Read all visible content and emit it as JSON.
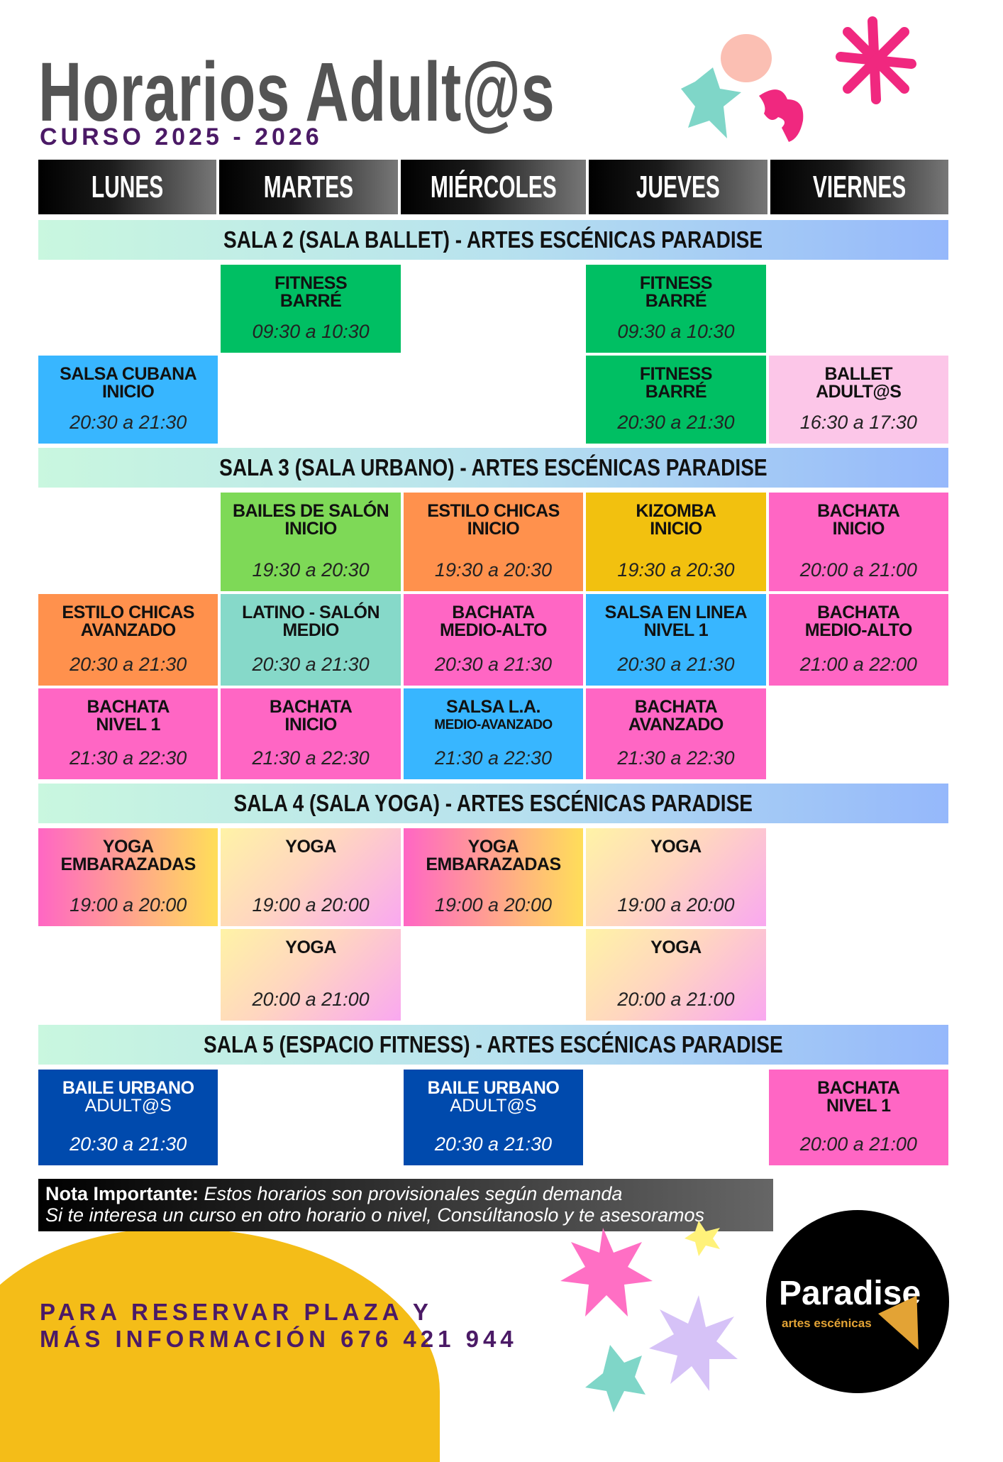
{
  "header": {
    "title": "Horarios Adult@s",
    "subtitle": "CURSO 2025 - 2026"
  },
  "days": [
    "LUNES",
    "MARTES",
    "MIÉRCOLES",
    "JUEVES",
    "VIERNES"
  ],
  "rooms": [
    {
      "title": "SALA 2 (SALA BALLET) - ARTES ESCÉNICAS PARADISE",
      "rows": [
        [
          null,
          {
            "name": "FITNESS",
            "sub2": "BARRÉ",
            "time": "09:30 a 10:30",
            "style": "green"
          },
          null,
          {
            "name": "FITNESS",
            "sub2": "BARRÉ",
            "time": "09:30 a 10:30",
            "style": "green"
          },
          null
        ],
        [
          {
            "name": "SALSA CUBANA",
            "sub2": "INICIO",
            "time": "20:30 a 21:30",
            "style": "blue"
          },
          null,
          null,
          {
            "name": "FITNESS",
            "sub2": "BARRÉ",
            "time": "20:30 a 21:30",
            "style": "green"
          },
          {
            "name": "BALLET",
            "sub2": "ADULT@S",
            "time": "16:30 a 17:30",
            "style": "lightpink"
          }
        ]
      ]
    },
    {
      "title": "SALA 3 (SALA URBANO) - ARTES ESCÉNICAS PARADISE",
      "rows": [
        [
          null,
          {
            "name": "BAILES DE SALÓN",
            "sub2": "INICIO",
            "time": "19:30 a 20:30",
            "style": "lime"
          },
          {
            "name": "ESTILO CHICAS",
            "sub2": "INICIO",
            "time": "19:30 a 20:30",
            "style": "orange"
          },
          {
            "name": "KIZOMBA",
            "sub2": "INICIO",
            "time": "19:30 a 20:30",
            "style": "yellow"
          },
          {
            "name": "BACHATA",
            "sub2": "INICIO",
            "time": "20:00 a 21:00",
            "style": "pink"
          }
        ],
        [
          {
            "name": "ESTILO CHICAS",
            "sub2": "AVANZADO",
            "time": "20:30 a 21:30",
            "style": "orange"
          },
          {
            "name": "LATINO - SALÓN",
            "sub2": "MEDIO",
            "time": "20:30 a 21:30",
            "style": "teal"
          },
          {
            "name": "BACHATA",
            "sub2": "MEDIO-ALTO",
            "time": "20:30 a 21:30",
            "style": "pink"
          },
          {
            "name": "SALSA EN LINEA",
            "sub2": "NIVEL 1",
            "time": "20:30 a 21:30",
            "style": "blue"
          },
          {
            "name": "BACHATA",
            "sub2": "MEDIO-ALTO",
            "time": "21:00 a 22:00",
            "style": "pink"
          }
        ],
        [
          {
            "name": "BACHATA",
            "sub2": "NIVEL 1",
            "time": "21:30 a 22:30",
            "style": "pink"
          },
          {
            "name": "BACHATA",
            "sub2": "INICIO",
            "time": "21:30 a 22:30",
            "style": "pink"
          },
          {
            "name": "SALSA L.A.",
            "sub2": "MEDIO-AVANZADO",
            "time": "21:30 a 22:30",
            "style": "blue",
            "small": true
          },
          {
            "name": "BACHATA",
            "sub2": "AVANZADO",
            "time": "21:30 a 22:30",
            "style": "pink"
          },
          null
        ]
      ]
    },
    {
      "title": "SALA 4 (SALA YOGA) - ARTES ESCÉNICAS PARADISE",
      "rows": [
        [
          {
            "name": "YOGA",
            "sub2": "EMBARAZADAS",
            "time": "19:00 a 20:00",
            "style": "yoga-warm"
          },
          {
            "name": "YOGA",
            "time": "19:00 a 20:00",
            "style": "yoga-light"
          },
          {
            "name": "YOGA",
            "sub2": "EMBARAZADAS",
            "time": "19:00 a 20:00",
            "style": "yoga-warm"
          },
          {
            "name": "YOGA",
            "time": "19:00 a 20:00",
            "style": "yoga-light"
          },
          null
        ],
        [
          null,
          {
            "name": "YOGA",
            "time": "20:00 a 21:00",
            "style": "yoga-light"
          },
          null,
          {
            "name": "YOGA",
            "time": "20:00 a 21:00",
            "style": "yoga-light"
          },
          null
        ]
      ]
    },
    {
      "title": "SALA 5 (ESPACIO FITNESS) - ARTES ESCÉNICAS PARADISE",
      "rows": [
        [
          {
            "name": "BAILE URBANO",
            "sub": "ADULT@S",
            "time": "20:30 a 21:30",
            "style": "navy"
          },
          null,
          {
            "name": "BAILE URBANO",
            "sub": "ADULT@S",
            "time": "20:30 a 21:30",
            "style": "navy"
          },
          null,
          {
            "name": "BACHATA",
            "sub2": "NIVEL 1",
            "time": "20:00 a 21:00",
            "style": "pink"
          }
        ]
      ]
    }
  ],
  "note": {
    "label": "Nota Importante:",
    "line1": "Estos horarios son provisionales según demanda",
    "line2": "Si te interesa un curso en otro horario o nivel, Consúltanoslo y te asesoramos"
  },
  "footer": {
    "line1": "PARA RESERVAR PLAZA Y",
    "line2": "MÁS INFORMACIÓN 676 421 944"
  },
  "logo": {
    "name": "Paradise",
    "tagline": "artes escénicas"
  },
  "colors": {
    "title": "#545454",
    "accent": "#4b1a66",
    "green": "#00bf63",
    "blue": "#38b6ff",
    "pink": "#ff66c4",
    "navy": "#004aad",
    "orange": "#ff914d",
    "yellow": "#f2c10f",
    "lime": "#7ed957"
  }
}
